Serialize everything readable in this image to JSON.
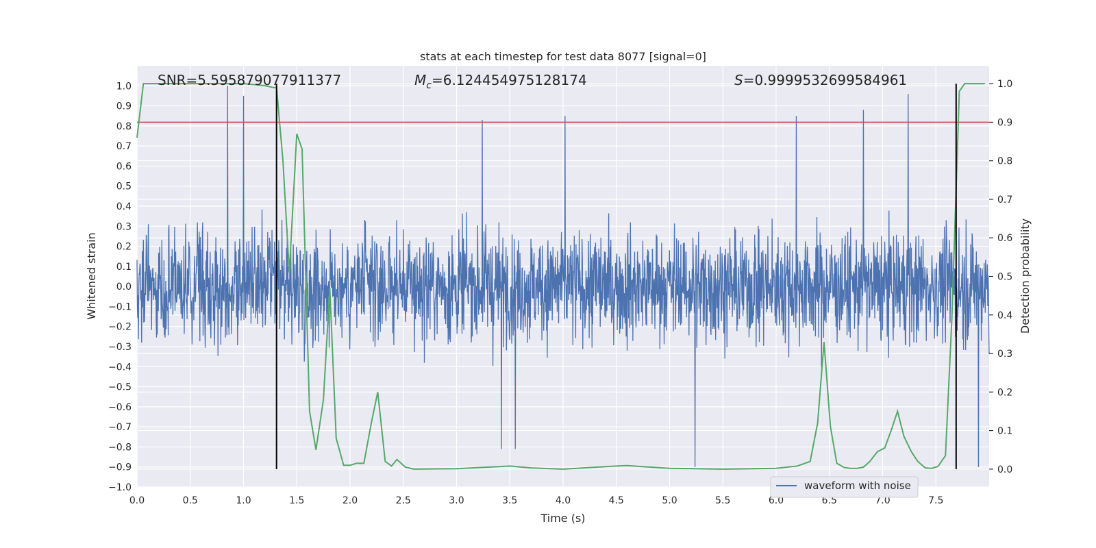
{
  "chart_data": {
    "type": "line",
    "title": "stats at each timestep for test data 8077 [signal=0]",
    "xlabel": "Time (s)",
    "ylabel": "Whitened strain",
    "y2label": "Detection probability",
    "xlim": [
      0.0,
      8.0
    ],
    "ylim": [
      -1.0,
      1.1
    ],
    "y2lim": [
      -0.0465,
      1.0465
    ],
    "x_ticks": [
      "0.0",
      "0.5",
      "1.0",
      "1.5",
      "2.0",
      "2.5",
      "3.0",
      "3.5",
      "4.0",
      "4.5",
      "5.0",
      "5.5",
      "6.0",
      "6.5",
      "7.0",
      "7.5"
    ],
    "y_ticks": [
      "−1.0",
      "−0.9",
      "−0.8",
      "−0.7",
      "−0.6",
      "−0.5",
      "−0.4",
      "−0.3",
      "−0.2",
      "−0.1",
      "0.0",
      "0.1",
      "0.2",
      "0.3",
      "0.4",
      "0.5",
      "0.6",
      "0.7",
      "0.8",
      "0.9",
      "1.0"
    ],
    "y2_ticks": [
      "0.0",
      "0.1",
      "0.2",
      "0.3",
      "0.4",
      "0.5",
      "0.6",
      "0.7",
      "0.8",
      "0.9",
      "1.0"
    ],
    "grid": true,
    "legend_position": "lower-right",
    "annotations": {
      "snr": "SNR=5.595879077911377",
      "mc_symbol": "M",
      "mc_sub": "c",
      "mc_value": "=6.124454975128174",
      "s_symbol": "S",
      "s_value": "=0.9999532699584961"
    },
    "colors": {
      "waveform": "#4c72b0",
      "probability": "#55a868",
      "threshold": "#c44e52",
      "markers": "#000000",
      "plot_bg": "#eaeaf2",
      "grid": "#ffffff"
    },
    "threshold_probability": 0.9,
    "vertical_markers": [
      1.31,
      7.69
    ],
    "series": [
      {
        "name": "waveform with noise",
        "axis": "left",
        "description_values": {
          "positive_peaks": [
            [
              0.85,
              1.0
            ],
            [
              1.0,
              0.95
            ],
            [
              3.24,
              0.83
            ],
            [
              4.02,
              0.85
            ],
            [
              6.19,
              0.85
            ],
            [
              6.82,
              0.88
            ],
            [
              7.24,
              0.96
            ]
          ],
          "negative_peaks": [
            [
              3.42,
              -0.81
            ],
            [
              3.55,
              -0.81
            ],
            [
              5.24,
              -0.9
            ],
            [
              7.9,
              -0.9
            ]
          ],
          "typical_amplitude": 0.42
        }
      },
      {
        "name": "",
        "axis": "right",
        "x": [
          0.0,
          0.06,
          0.2,
          0.5,
          0.8,
          1.0,
          1.2,
          1.28,
          1.31,
          1.37,
          1.43,
          1.5,
          1.55,
          1.62,
          1.68,
          1.75,
          1.81,
          1.87,
          1.94,
          2.0,
          2.06,
          2.13,
          2.2,
          2.26,
          2.33,
          2.39,
          2.44,
          2.52,
          2.6,
          3.0,
          3.5,
          3.7,
          4.0,
          4.5,
          4.6,
          5.0,
          5.5,
          6.0,
          6.2,
          6.32,
          6.39,
          6.45,
          6.51,
          6.57,
          6.64,
          6.7,
          6.76,
          6.82,
          6.88,
          6.95,
          7.02,
          7.08,
          7.14,
          7.2,
          7.27,
          7.33,
          7.4,
          7.46,
          7.52,
          7.59,
          7.65,
          7.72,
          7.77,
          7.83,
          7.9,
          7.96
        ],
        "values": [
          0.86,
          1.0,
          1.0,
          1.0,
          1.0,
          1.0,
          0.995,
          0.99,
          0.99,
          0.8,
          0.51,
          0.87,
          0.83,
          0.15,
          0.05,
          0.18,
          0.47,
          0.08,
          0.01,
          0.01,
          0.015,
          0.015,
          0.12,
          0.2,
          0.02,
          0.008,
          0.025,
          0.005,
          0.0,
          0.001,
          0.008,
          0.003,
          0.0,
          0.008,
          0.009,
          0.002,
          0.0,
          0.002,
          0.008,
          0.02,
          0.12,
          0.33,
          0.11,
          0.015,
          0.004,
          0.002,
          0.002,
          0.005,
          0.02,
          0.045,
          0.055,
          0.1,
          0.15,
          0.085,
          0.045,
          0.02,
          0.003,
          0.002,
          0.007,
          0.035,
          0.39,
          0.98,
          1.0,
          1.0,
          1.0,
          1.0
        ]
      }
    ]
  }
}
